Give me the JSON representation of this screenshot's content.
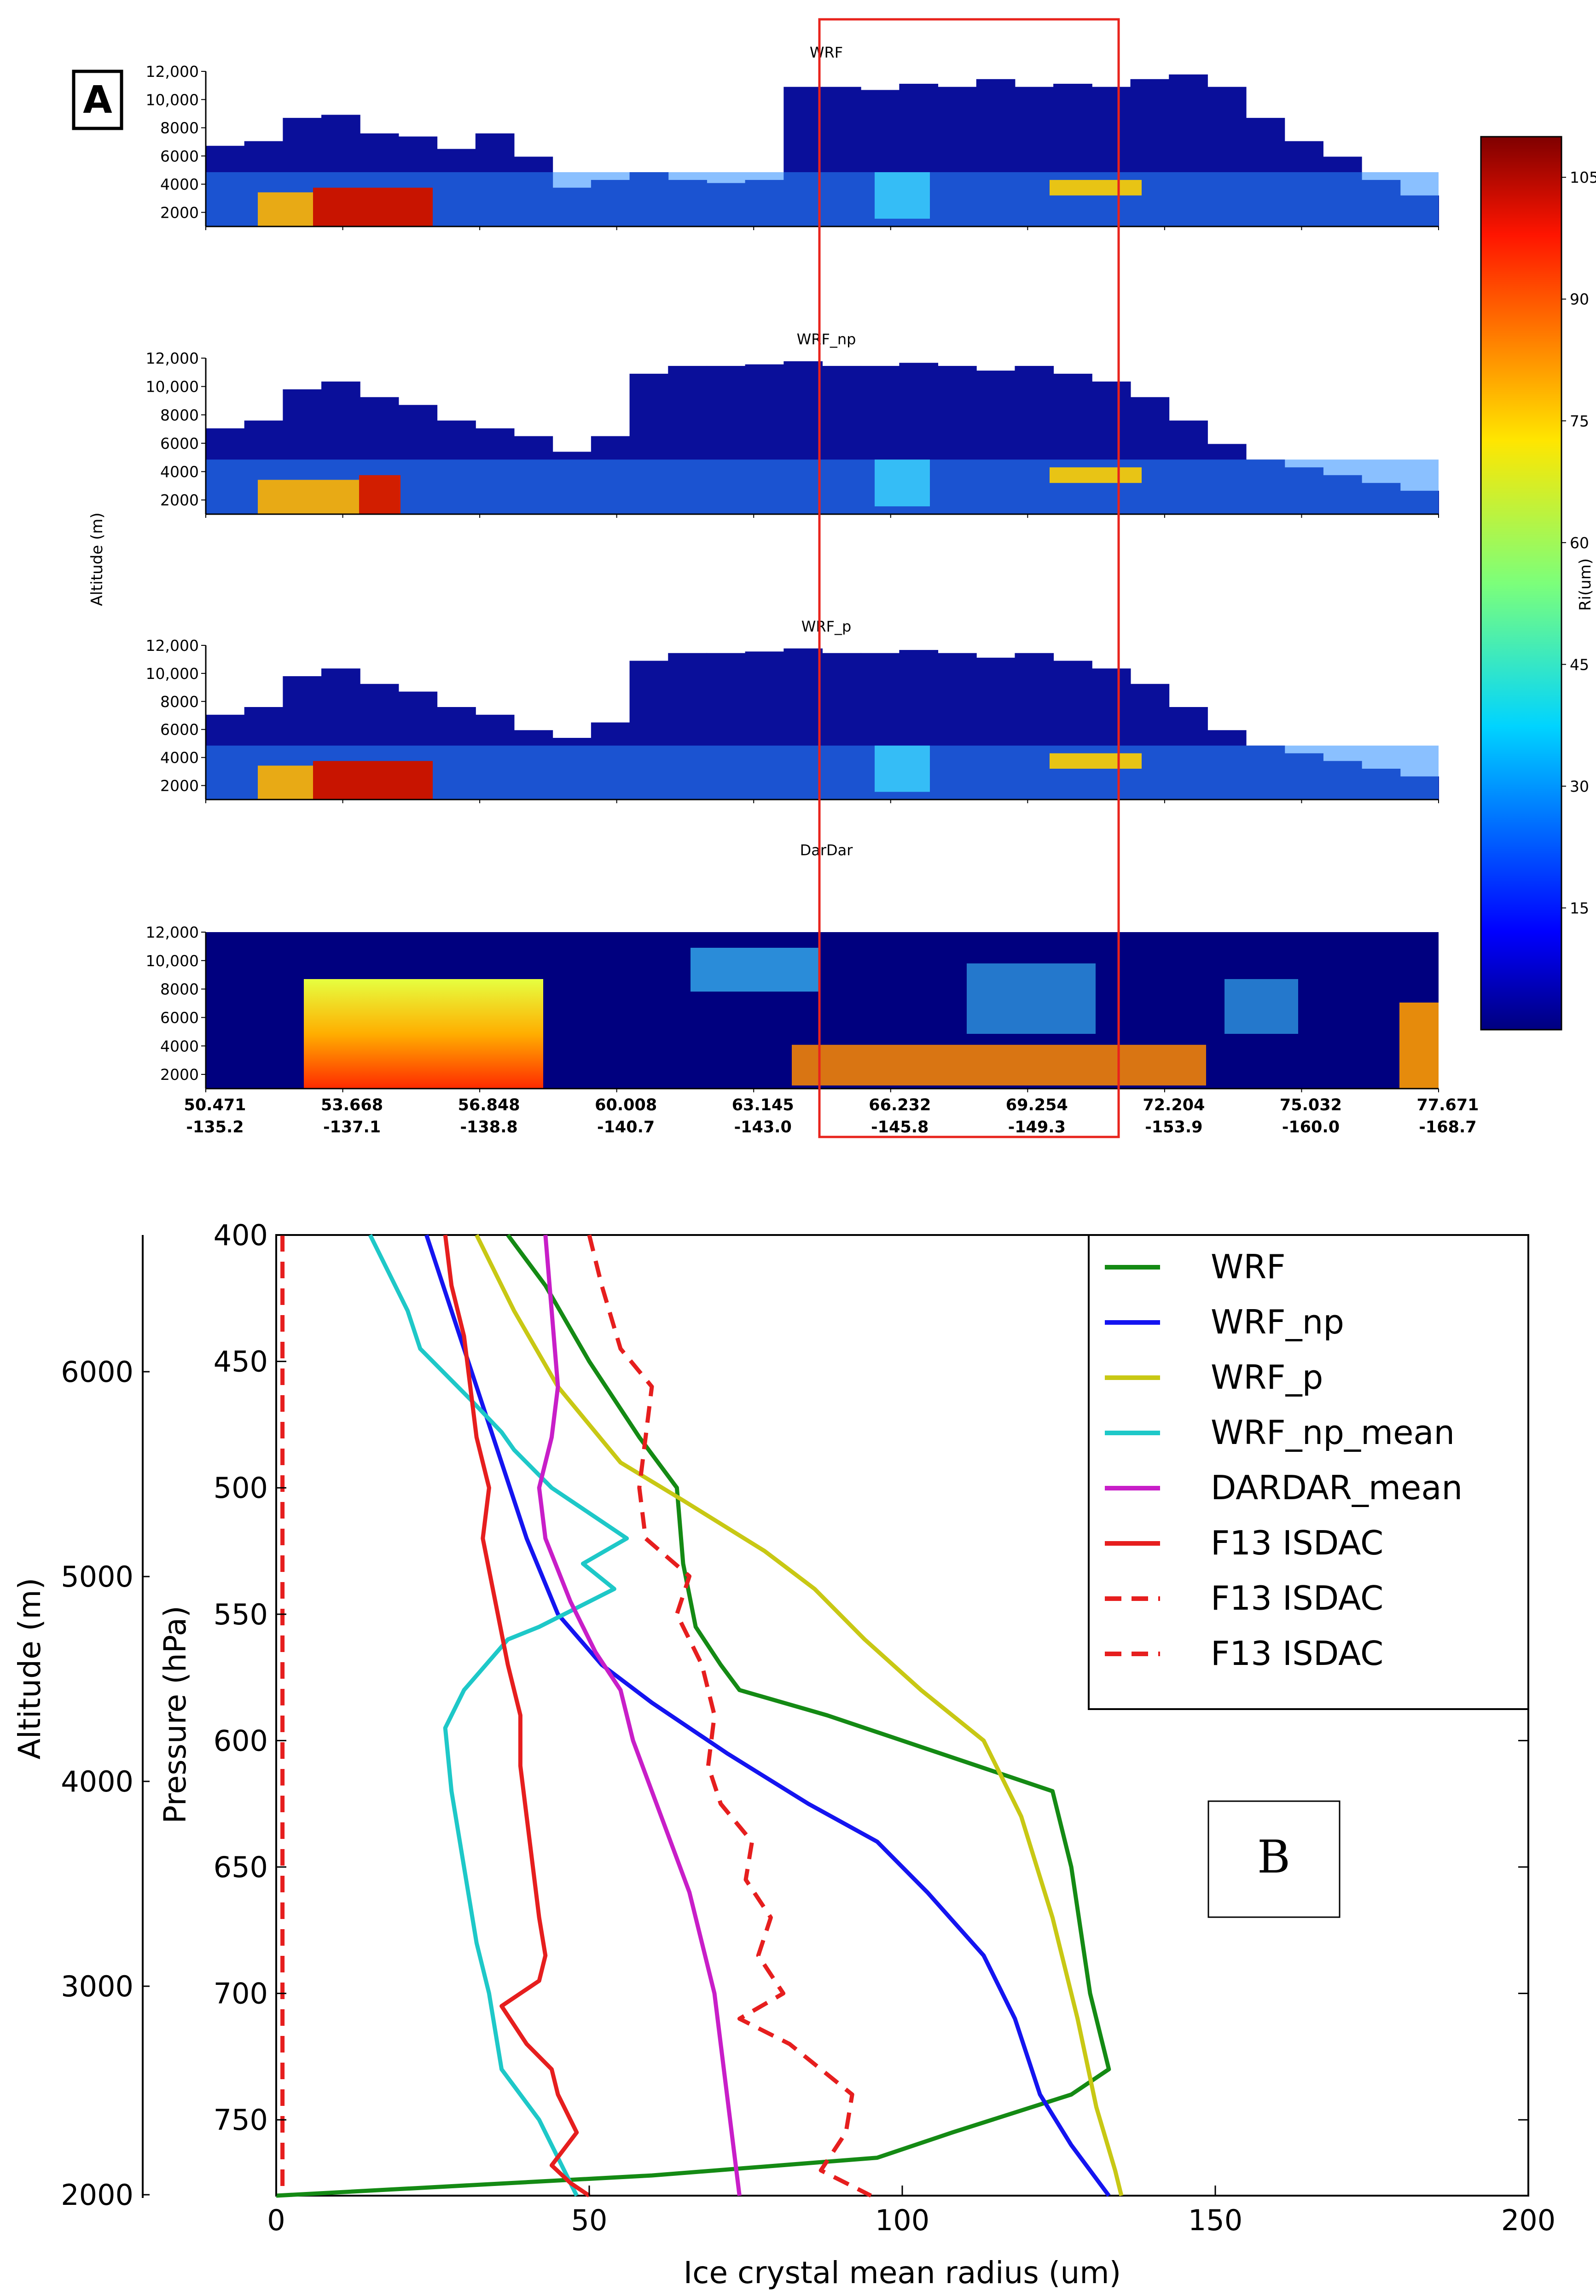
{
  "panel_a": {
    "label": "A",
    "ylabel": "Altitude (m)",
    "colorbar": {
      "label": "Ri(um)",
      "ticks": [
        "105",
        "90",
        "75",
        "60",
        "45",
        "30",
        "15"
      ],
      "tick_values": [
        105,
        90,
        75,
        60,
        45,
        30,
        15
      ],
      "range": [
        0,
        110
      ]
    },
    "yticks": [
      "12,000",
      "10,000",
      "8000",
      "6000",
      "4000",
      "2000"
    ],
    "xticks_lat": [
      "50.471",
      "53.668",
      "56.848",
      "60.008",
      "63.145",
      "66.232",
      "69.254",
      "72.204",
      "75.032",
      "77.671"
    ],
    "xticks_lon": [
      "-135.2",
      "-137.1",
      "-138.8",
      "-140.7",
      "-143.0",
      "-145.8",
      "-149.3",
      "-153.9",
      "-160.0",
      "-168.7"
    ],
    "highlight_box_latitude_range": [
      "63.145",
      "72.204"
    ],
    "highlight_color": "#e8231c",
    "subplots": [
      {
        "title": "WRF"
      },
      {
        "title": "WRF_np"
      },
      {
        "title": "WRF_p"
      },
      {
        "title": "DarDar"
      }
    ]
  },
  "chart_data": {
    "type": "line",
    "label": "B",
    "xlabel": "Ice crystal mean radius (um)",
    "ylabel": "Pressure (hPa)",
    "secondary_ylabel": "Altitude (m)",
    "xlim": [
      0,
      200
    ],
    "ylim": [
      780,
      400
    ],
    "xticks": [
      "0",
      "50",
      "100",
      "150",
      "200"
    ],
    "yticks": [
      "400",
      "450",
      "500",
      "550",
      "600",
      "650",
      "700",
      "750"
    ],
    "altitude_ticks": [
      "6000",
      "5000",
      "4000",
      "3000",
      "2000"
    ],
    "series": [
      {
        "name": "WRF",
        "color": "#148a14",
        "dash": "solid",
        "points": [
          [
            37,
            400
          ],
          [
            43,
            420
          ],
          [
            50,
            450
          ],
          [
            58,
            480
          ],
          [
            64,
            500
          ],
          [
            65,
            530
          ],
          [
            67,
            555
          ],
          [
            71,
            570
          ],
          [
            74,
            580
          ],
          [
            88,
            590
          ],
          [
            100,
            600
          ],
          [
            112,
            610
          ],
          [
            124,
            620
          ],
          [
            127,
            650
          ],
          [
            130,
            700
          ],
          [
            133,
            730
          ],
          [
            127,
            740
          ],
          [
            108,
            755
          ],
          [
            96,
            765
          ],
          [
            60,
            772
          ],
          [
            0,
            780
          ]
        ]
      },
      {
        "name": "WRF_np",
        "color": "#1414f0",
        "dash": "solid",
        "points": [
          [
            24,
            400
          ],
          [
            28,
            430
          ],
          [
            32,
            460
          ],
          [
            36,
            490
          ],
          [
            40,
            520
          ],
          [
            45,
            550
          ],
          [
            52,
            570
          ],
          [
            60,
            585
          ],
          [
            72,
            605
          ],
          [
            85,
            625
          ],
          [
            96,
            640
          ],
          [
            104,
            660
          ],
          [
            113,
            685
          ],
          [
            118,
            710
          ],
          [
            122,
            740
          ],
          [
            127,
            760
          ],
          [
            133,
            780
          ]
        ]
      },
      {
        "name": "WRF_p",
        "color": "#c8c814",
        "dash": "solid",
        "points": [
          [
            32,
            400
          ],
          [
            38,
            430
          ],
          [
            45,
            460
          ],
          [
            55,
            490
          ],
          [
            65,
            505
          ],
          [
            78,
            525
          ],
          [
            86,
            540
          ],
          [
            94,
            560
          ],
          [
            103,
            580
          ],
          [
            113,
            600
          ],
          [
            119,
            630
          ],
          [
            124,
            670
          ],
          [
            128,
            710
          ],
          [
            131,
            745
          ],
          [
            134,
            770
          ],
          [
            135,
            780
          ]
        ]
      },
      {
        "name": "WRF_np_mean",
        "color": "#1ec8c8",
        "dash": "solid",
        "points": [
          [
            15,
            400
          ],
          [
            18,
            415
          ],
          [
            21,
            430
          ],
          [
            23,
            445
          ],
          [
            31,
            465
          ],
          [
            36,
            478
          ],
          [
            38,
            485
          ],
          [
            44,
            500
          ],
          [
            50,
            510
          ],
          [
            56,
            520
          ],
          [
            49,
            530
          ],
          [
            54,
            540
          ],
          [
            42,
            555
          ],
          [
            37,
            560
          ],
          [
            30,
            580
          ],
          [
            27,
            595
          ],
          [
            28,
            620
          ],
          [
            30,
            650
          ],
          [
            32,
            680
          ],
          [
            34,
            700
          ],
          [
            36,
            730
          ],
          [
            42,
            750
          ],
          [
            46,
            770
          ],
          [
            48,
            780
          ]
        ]
      },
      {
        "name": "DARDAR_mean",
        "color": "#c81ec8",
        "dash": "solid",
        "points": [
          [
            43,
            400
          ],
          [
            44,
            430
          ],
          [
            45,
            460
          ],
          [
            44,
            480
          ],
          [
            42,
            500
          ],
          [
            43,
            520
          ],
          [
            47,
            545
          ],
          [
            51,
            565
          ],
          [
            55,
            580
          ],
          [
            57,
            600
          ],
          [
            60,
            620
          ],
          [
            63,
            640
          ],
          [
            66,
            660
          ],
          [
            68,
            680
          ],
          [
            70,
            700
          ],
          [
            71,
            720
          ],
          [
            72,
            740
          ],
          [
            73,
            760
          ],
          [
            74,
            780
          ]
        ]
      },
      {
        "name": "F13 ISDAC",
        "color": "#e61e1e",
        "dash": "solid",
        "points": [
          [
            27,
            400
          ],
          [
            28,
            420
          ],
          [
            30,
            440
          ],
          [
            31,
            460
          ],
          [
            32,
            480
          ],
          [
            34,
            500
          ],
          [
            33,
            520
          ],
          [
            35,
            545
          ],
          [
            37,
            570
          ],
          [
            39,
            590
          ],
          [
            39,
            610
          ],
          [
            40,
            630
          ],
          [
            41,
            650
          ],
          [
            42,
            670
          ],
          [
            43,
            685
          ],
          [
            42,
            695
          ],
          [
            36,
            705
          ],
          [
            40,
            720
          ],
          [
            44,
            730
          ],
          [
            45,
            740
          ],
          [
            48,
            755
          ],
          [
            44,
            768
          ],
          [
            47,
            775
          ],
          [
            50,
            780
          ]
        ]
      },
      {
        "name": "F13 ISDAC",
        "color": "#e61e1e",
        "dash": "dashed",
        "points": [
          [
            50,
            400
          ],
          [
            52,
            420
          ],
          [
            55,
            445
          ],
          [
            60,
            460
          ],
          [
            59,
            480
          ],
          [
            58,
            500
          ],
          [
            59,
            520
          ],
          [
            66,
            535
          ],
          [
            64,
            550
          ],
          [
            68,
            570
          ],
          [
            70,
            590
          ],
          [
            69,
            610
          ],
          [
            71,
            625
          ],
          [
            76,
            640
          ],
          [
            75,
            655
          ],
          [
            79,
            670
          ],
          [
            77,
            685
          ],
          [
            81,
            700
          ],
          [
            74,
            710
          ],
          [
            82,
            720
          ],
          [
            87,
            730
          ],
          [
            92,
            740
          ],
          [
            91,
            755
          ],
          [
            87,
            770
          ],
          [
            95,
            780
          ]
        ]
      },
      {
        "name": "F13 ISDAC",
        "color": "#e61e1e",
        "dash": "dashed",
        "points": [
          [
            1,
            400
          ],
          [
            1,
            780
          ]
        ]
      }
    ],
    "annotation_box": "B"
  }
}
